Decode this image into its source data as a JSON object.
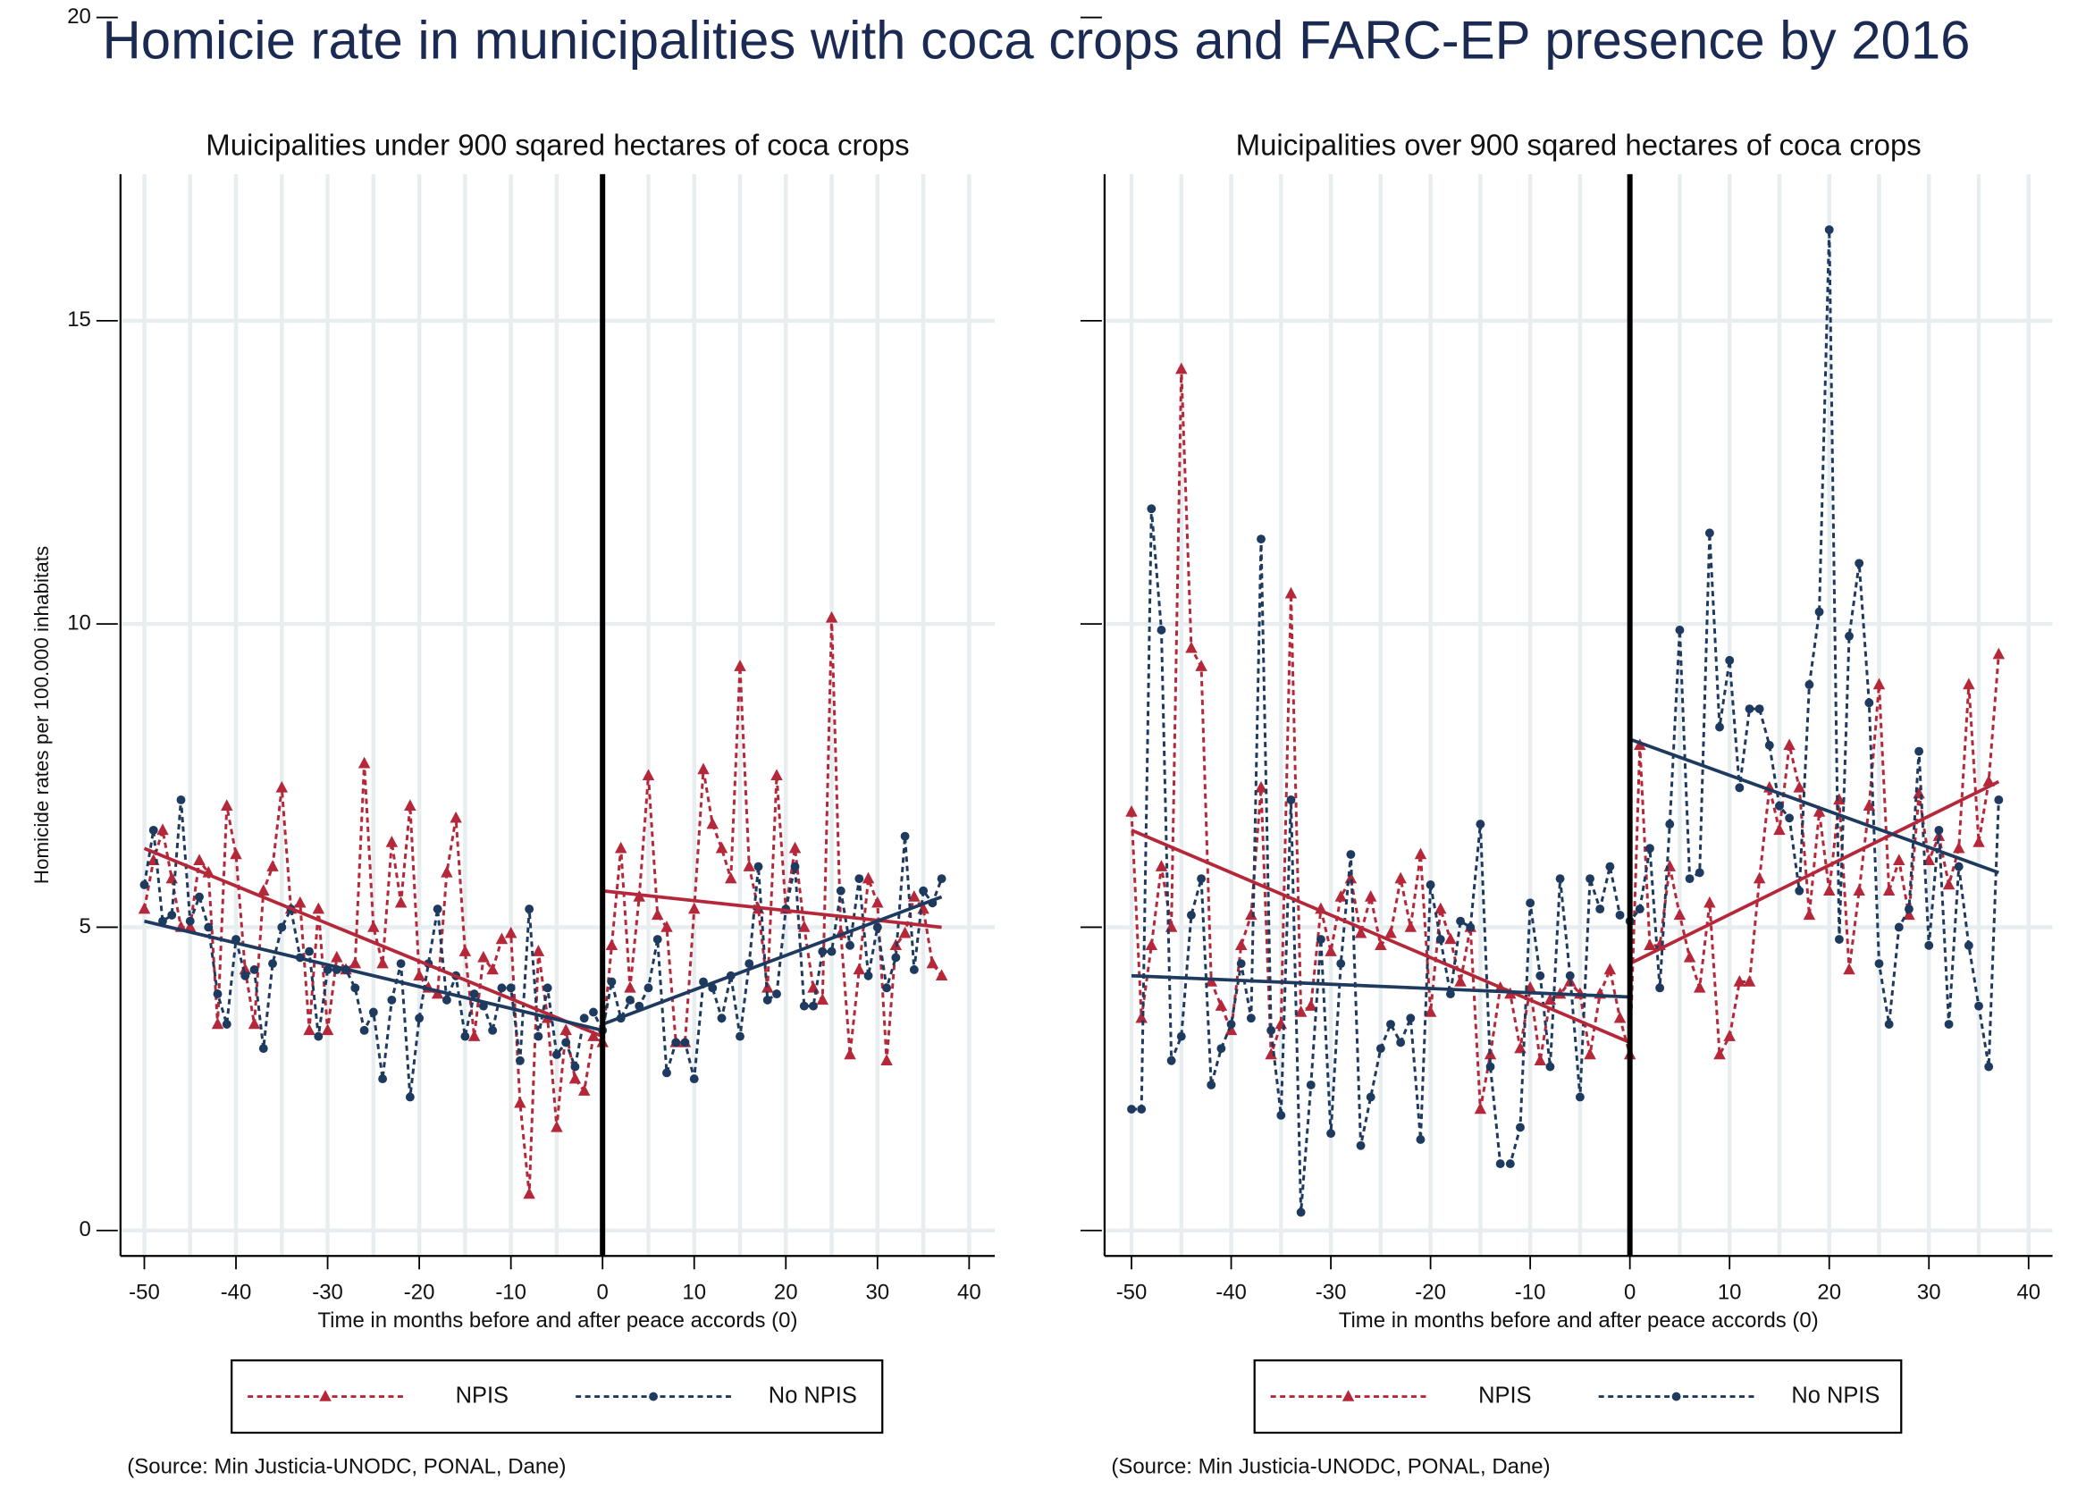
{
  "title": "Homicie rate in municipalities with coca crops and FARC-EP presence by 2016",
  "chart_data": [
    {
      "type": "line",
      "title": "Muicipalities under 900 sqared hectares of coca crops",
      "x_label": "Time in months before and after peace accords (0)",
      "y_label": "Homicide rates per 100.000 inhabitats",
      "note": "(Source: Min Justicia-UNODC, PONAL, Dane)",
      "x": [
        -50,
        -49,
        -48,
        -47,
        -46,
        -45,
        -44,
        -43,
        -42,
        -41,
        -40,
        -39,
        -38,
        -37,
        -36,
        -35,
        -34,
        -33,
        -32,
        -31,
        -30,
        -29,
        -28,
        -27,
        -26,
        -25,
        -24,
        -23,
        -22,
        -21,
        -20,
        -19,
        -18,
        -17,
        -16,
        -15,
        -14,
        -13,
        -12,
        -11,
        -10,
        -9,
        -8,
        -7,
        -6,
        -5,
        -4,
        -3,
        -2,
        -1,
        0,
        1,
        2,
        3,
        4,
        5,
        6,
        7,
        8,
        9,
        10,
        11,
        12,
        13,
        14,
        15,
        16,
        17,
        18,
        19,
        20,
        21,
        22,
        23,
        24,
        25,
        26,
        27,
        28,
        29,
        30,
        31,
        32,
        33,
        34,
        35,
        36,
        37
      ],
      "series": [
        {
          "name": "NPIS",
          "color": "#b5283a",
          "marker": "triangle",
          "values": [
            5.3,
            6.1,
            6.6,
            5.8,
            5.0,
            5.0,
            6.1,
            5.9,
            3.4,
            7.0,
            6.2,
            4.3,
            3.4,
            5.6,
            6.0,
            7.3,
            5.3,
            5.4,
            3.3,
            5.3,
            3.3,
            4.5,
            4.3,
            4.4,
            7.7,
            5.0,
            4.4,
            6.4,
            5.4,
            7.0,
            4.2,
            4.0,
            3.9,
            5.9,
            6.8,
            4.6,
            3.2,
            4.5,
            4.3,
            4.8,
            4.9,
            2.1,
            0.6,
            4.6,
            3.5,
            1.7,
            3.3,
            2.5,
            2.3,
            3.2,
            3.1,
            4.7,
            6.3,
            4.0,
            5.5,
            7.5,
            5.2,
            5.0,
            3.1,
            3.1,
            5.3,
            7.6,
            6.7,
            6.3,
            5.8,
            9.3,
            6.0,
            5.3,
            4.0,
            7.5,
            5.3,
            6.3,
            5.0,
            4.0,
            3.8,
            10.1,
            4.9,
            2.9,
            4.3,
            5.8,
            5.4,
            2.8,
            4.7,
            4.9,
            5.5,
            5.3,
            4.4,
            4.2
          ],
          "fit": [
            {
              "x": [
                -50,
                0
              ],
              "values": [
                6.3,
                3.2
              ]
            },
            {
              "x": [
                0,
                37
              ],
              "values": [
                5.6,
                5.0
              ]
            }
          ]
        },
        {
          "name": "No NPIS",
          "color": "#1f3a5f",
          "marker": "circle",
          "values": [
            5.7,
            6.6,
            5.1,
            5.2,
            7.1,
            5.1,
            5.5,
            5.0,
            3.9,
            3.4,
            4.8,
            4.2,
            4.3,
            3.0,
            4.4,
            5.0,
            5.3,
            4.5,
            4.6,
            3.2,
            4.3,
            4.3,
            4.3,
            4.0,
            3.3,
            3.6,
            2.5,
            3.8,
            4.4,
            2.2,
            3.5,
            4.4,
            5.3,
            3.8,
            4.2,
            3.2,
            3.9,
            3.7,
            3.3,
            4.0,
            4.0,
            2.8,
            5.3,
            3.2,
            4.0,
            2.9,
            3.1,
            2.7,
            3.5,
            3.6,
            3.3,
            4.1,
            3.5,
            3.8,
            3.7,
            4.0,
            4.8,
            2.6,
            3.1,
            3.1,
            2.5,
            4.1,
            4.0,
            3.5,
            4.2,
            3.2,
            4.4,
            6.0,
            3.8,
            3.9,
            5.3,
            6.0,
            3.7,
            3.7,
            4.6,
            4.6,
            5.6,
            4.7,
            5.8,
            4.2,
            5.0,
            4.0,
            4.5,
            6.5,
            4.3,
            5.6,
            5.4,
            5.8
          ],
          "fit": [
            {
              "x": [
                -50,
                0
              ],
              "values": [
                5.1,
                3.3
              ]
            },
            {
              "x": [
                0,
                37
              ],
              "values": [
                3.4,
                5.5
              ]
            }
          ]
        }
      ],
      "vline": 0,
      "xlim": [
        -52.6,
        42.8
      ],
      "xticks": [
        -50,
        -40,
        -30,
        -20,
        -10,
        0,
        10,
        20,
        30,
        40
      ],
      "ylim": [
        -0.42,
        20
      ],
      "yticks": [
        0,
        5,
        10,
        15,
        20
      ],
      "show_ytick_labels": true,
      "grid": true
    },
    {
      "type": "line",
      "title": "Muicipalities over 900 sqared hectares of coca crops",
      "x_label": "Time in months before and after peace accords (0)",
      "note": "(Source: Min Justicia-UNODC, PONAL, Dane)",
      "x": [
        -50,
        -49,
        -48,
        -47,
        -46,
        -45,
        -44,
        -43,
        -42,
        -41,
        -40,
        -39,
        -38,
        -37,
        -36,
        -35,
        -34,
        -33,
        -32,
        -31,
        -30,
        -29,
        -28,
        -27,
        -26,
        -25,
        -24,
        -23,
        -22,
        -21,
        -20,
        -19,
        -18,
        -17,
        -16,
        -15,
        -14,
        -13,
        -12,
        -11,
        -10,
        -9,
        -8,
        -7,
        -6,
        -5,
        -4,
        -3,
        -2,
        -1,
        0,
        1,
        2,
        3,
        4,
        5,
        6,
        7,
        8,
        9,
        10,
        11,
        12,
        13,
        14,
        15,
        16,
        17,
        18,
        19,
        20,
        21,
        22,
        23,
        24,
        25,
        26,
        27,
        28,
        29,
        30,
        31,
        32,
        33,
        34,
        35,
        36,
        37
      ],
      "series": [
        {
          "name": "NPIS",
          "color": "#b5283a",
          "marker": "triangle",
          "values": [
            6.9,
            3.5,
            4.7,
            6.0,
            5.0,
            14.2,
            9.6,
            9.3,
            4.1,
            3.7,
            3.3,
            4.7,
            5.2,
            7.3,
            2.9,
            3.4,
            10.5,
            3.6,
            3.7,
            5.3,
            4.6,
            5.5,
            5.8,
            4.9,
            5.5,
            4.7,
            4.9,
            5.8,
            5.0,
            6.2,
            3.6,
            5.3,
            4.8,
            4.1,
            5.0,
            2.0,
            2.9,
            4.0,
            3.9,
            3.0,
            4.0,
            2.8,
            3.8,
            3.9,
            4.1,
            3.9,
            2.9,
            3.9,
            4.3,
            3.5,
            2.9,
            8.0,
            4.7,
            4.7,
            6.0,
            5.2,
            4.5,
            4.0,
            5.4,
            2.9,
            3.2,
            4.1,
            4.1,
            5.8,
            7.3,
            6.6,
            8.0,
            7.3,
            5.2,
            6.9,
            5.6,
            7.1,
            4.3,
            5.6,
            7.0,
            9.0,
            5.6,
            6.1,
            5.2,
            7.2,
            6.1,
            6.5,
            5.7,
            6.3,
            9.0,
            6.4,
            7.4,
            9.5
          ],
          "fit": [
            {
              "x": [
                -50,
                0
              ],
              "values": [
                6.6,
                3.1
              ]
            },
            {
              "x": [
                0,
                37
              ],
              "values": [
                4.4,
                7.4
              ]
            }
          ]
        },
        {
          "name": "No NPIS",
          "color": "#1f3a5f",
          "marker": "circle",
          "values": [
            2.0,
            2.0,
            11.9,
            9.9,
            2.8,
            3.2,
            5.2,
            5.8,
            2.4,
            3.0,
            3.4,
            4.4,
            3.5,
            11.4,
            3.3,
            1.9,
            7.1,
            0.3,
            2.4,
            4.8,
            1.6,
            4.4,
            6.2,
            1.4,
            2.2,
            3.0,
            3.4,
            3.1,
            3.5,
            1.5,
            5.7,
            4.8,
            3.9,
            5.1,
            5.0,
            6.7,
            2.7,
            1.1,
            1.1,
            1.7,
            5.4,
            4.2,
            2.7,
            5.8,
            4.2,
            2.2,
            5.8,
            5.3,
            6.0,
            5.2,
            5.1,
            5.3,
            6.3,
            4.0,
            6.7,
            9.9,
            5.8,
            5.9,
            11.5,
            8.3,
            9.4,
            7.3,
            8.6,
            8.6,
            8.0,
            7.0,
            6.8,
            5.6,
            9.0,
            10.2,
            16.5,
            4.8,
            9.8,
            11.0,
            8.7,
            4.4,
            3.4,
            5.0,
            5.3,
            7.9,
            4.7,
            6.6,
            3.4,
            6.0,
            4.7,
            3.7,
            2.7,
            7.1
          ],
          "fit": [
            {
              "x": [
                -50,
                0
              ],
              "values": [
                4.2,
                3.85
              ]
            },
            {
              "x": [
                0,
                37
              ],
              "values": [
                8.1,
                5.9
              ]
            }
          ]
        }
      ],
      "vline": 0,
      "xlim": [
        -52.7,
        42.4
      ],
      "xticks": [
        -50,
        -40,
        -30,
        -20,
        -10,
        0,
        10,
        20,
        30,
        40
      ],
      "ylim": [
        -0.42,
        20
      ],
      "yticks": [
        0,
        5,
        10,
        15,
        20
      ],
      "show_ytick_labels": false,
      "grid": true
    }
  ]
}
